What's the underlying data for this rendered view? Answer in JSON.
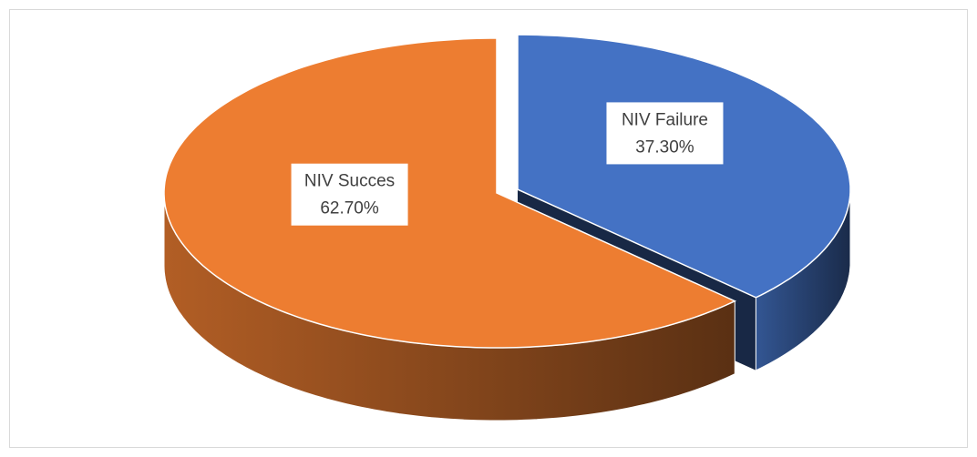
{
  "chart_data": {
    "type": "pie3d",
    "categories": [
      "NIV Failure",
      "NIV Succes"
    ],
    "values": [
      37.3,
      62.7
    ],
    "value_labels": [
      "37.30%",
      "62.70%"
    ],
    "colors": [
      "#4472c4",
      "#ed7d31"
    ],
    "exploded": [
      true,
      false
    ]
  }
}
